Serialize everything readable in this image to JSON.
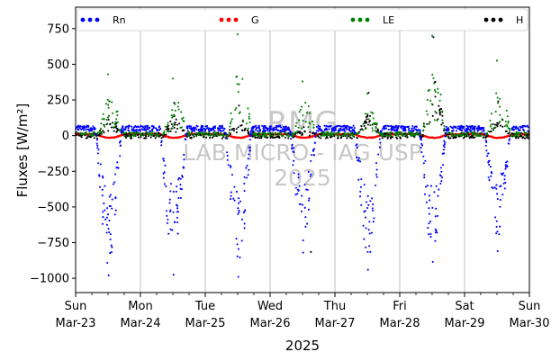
{
  "chart_data": {
    "type": "scatter",
    "ylabel": "Fluxes [W/m²]",
    "xlabel": "2025",
    "ylim": [
      -1100,
      900
    ],
    "xlim": [
      0,
      7
    ],
    "yticks": [
      -1000,
      -750,
      -500,
      -250,
      0,
      250,
      500,
      750
    ],
    "ytick_labels": [
      "−1000",
      "−750",
      "−500",
      "−250",
      "0",
      "250",
      "500",
      "750"
    ],
    "xticks": [
      {
        "day": "Sun",
        "date": "Mar-23"
      },
      {
        "day": "Mon",
        "date": "Mar-24"
      },
      {
        "day": "Tue",
        "date": "Mar-25"
      },
      {
        "day": "Wed",
        "date": "Mar-26"
      },
      {
        "day": "Thu",
        "date": "Mar-27"
      },
      {
        "day": "Fri",
        "date": "Mar-28"
      },
      {
        "day": "Sat",
        "date": "Mar-29"
      },
      {
        "day": "Sun",
        "date": "Mar-30"
      }
    ],
    "grid": "vertical",
    "legend_position": "top",
    "watermark": [
      "RMG",
      "LAB MICRO - IAG USP",
      "2025"
    ],
    "series": [
      {
        "name": "Rn",
        "color": "#0000ff",
        "night": 50,
        "day_minima": [
          -980,
          -975,
          -990,
          -820,
          -940,
          -885,
          -810
        ]
      },
      {
        "name": "G",
        "color": "#ff0000",
        "night": 10,
        "day": -15
      },
      {
        "name": "LE",
        "color": "#008000",
        "night": 10,
        "day_maxima": [
          430,
          400,
          710,
          380,
          295,
          700,
          525
        ]
      },
      {
        "name": "H",
        "color": "#000000",
        "night": 0,
        "day_maxima": [
          240,
          230,
          210,
          60,
          300,
          690,
          240
        ],
        "outliers": [
          [
            3.63,
            -815
          ]
        ]
      }
    ]
  }
}
